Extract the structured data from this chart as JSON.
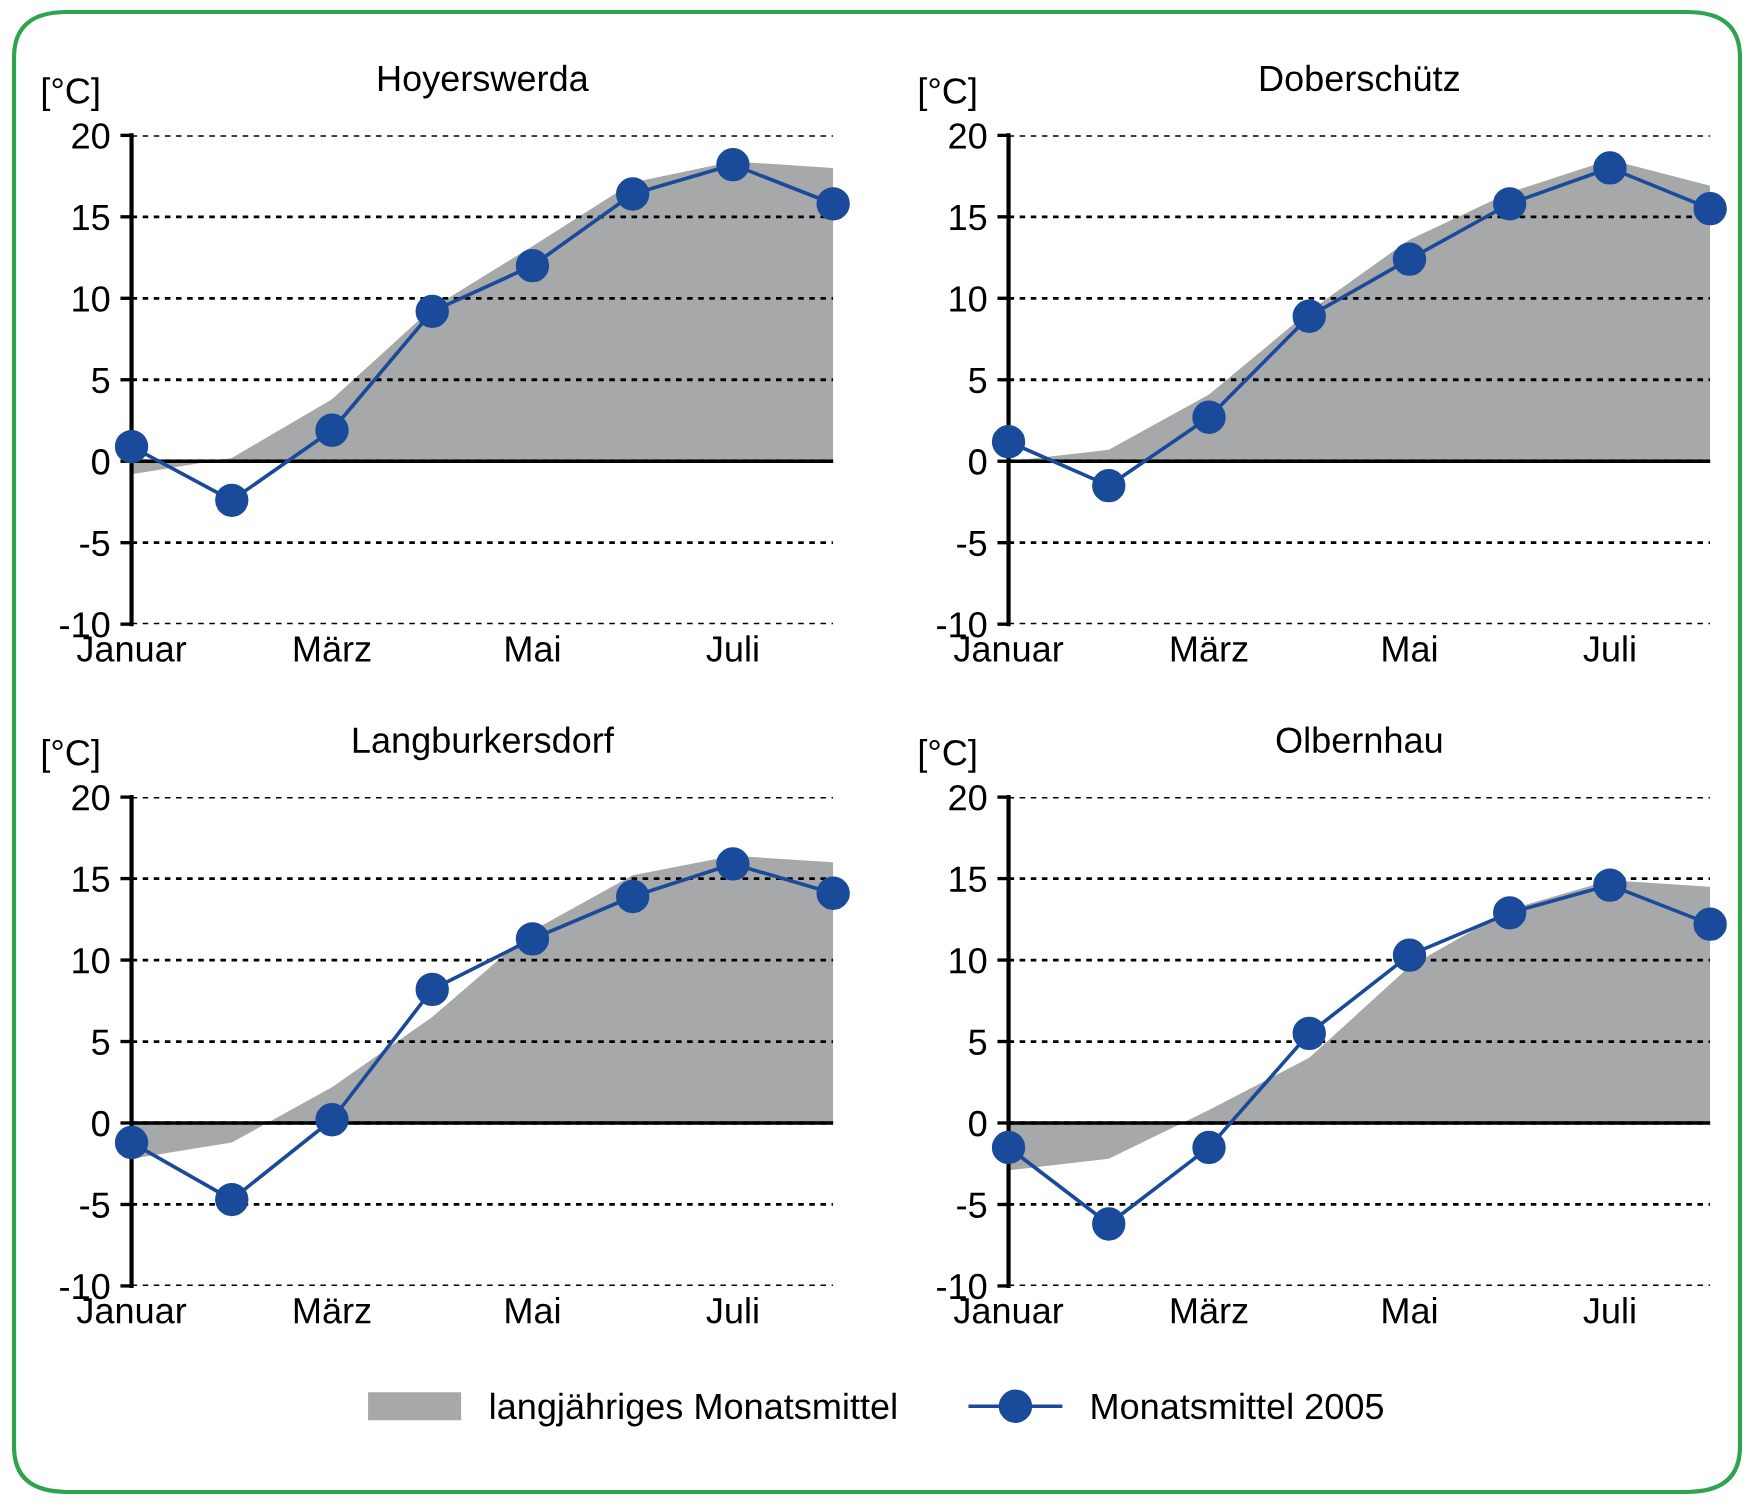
{
  "chart_data": [
    {
      "type": "line",
      "title": "Hoyerswerda",
      "ylabel": "[°C]",
      "categories": [
        "Januar",
        null,
        "März",
        null,
        "Mai",
        null,
        "Juli",
        null
      ],
      "ylim": [
        -10,
        20
      ],
      "yticks": [
        -10,
        -5,
        0,
        5,
        10,
        15,
        20
      ],
      "grid": "y",
      "legend": "bottom",
      "ref_lines": [
        {
          "axis": "y",
          "value": 0,
          "color": "#000000"
        }
      ],
      "series": [
        {
          "name": "langjähriges Monatsmittel",
          "type": "area",
          "color": "#a7a8aa",
          "values": [
            -0.8,
            0.2,
            3.8,
            9.4,
            13.2,
            17.1,
            18.4,
            18.0
          ]
        },
        {
          "name": "Monatsmittel 2005",
          "marker": "circle",
          "color": "#1a4b9a",
          "values": [
            0.9,
            -2.4,
            1.9,
            9.2,
            12.0,
            16.4,
            18.2,
            15.8
          ]
        }
      ]
    },
    {
      "type": "line",
      "title": "Doberschütz",
      "ylabel": "[°C]",
      "categories": [
        "Januar",
        null,
        "März",
        null,
        "Mai",
        null,
        "Juli",
        null
      ],
      "ylim": [
        -10,
        20
      ],
      "yticks": [
        -10,
        -5,
        0,
        5,
        10,
        15,
        20
      ],
      "grid": "y",
      "ref_lines": [
        {
          "axis": "y",
          "value": 0,
          "color": "#000000"
        }
      ],
      "series": [
        {
          "type": "area",
          "color": "#a7a8aa",
          "values": [
            0.0,
            0.7,
            4.1,
            9.2,
            13.6,
            16.5,
            18.5,
            16.9
          ]
        },
        {
          "marker": "circle",
          "color": "#1a4b9a",
          "values": [
            1.2,
            -1.5,
            2.7,
            8.9,
            12.4,
            15.8,
            18.0,
            15.5
          ]
        }
      ]
    },
    {
      "type": "line",
      "title": "Langburkersdorf",
      "ylabel": "[°C]",
      "categories": [
        "Januar",
        null,
        "März",
        null,
        "Mai",
        null,
        "Juli",
        null
      ],
      "ylim": [
        -10,
        20
      ],
      "yticks": [
        -10,
        -5,
        0,
        5,
        10,
        15,
        20
      ],
      "grid": "y",
      "ref_lines": [
        {
          "axis": "y",
          "value": 0,
          "color": "#000000"
        }
      ],
      "series": [
        {
          "type": "area",
          "color": "#a7a8aa",
          "values": [
            -2.2,
            -1.2,
            2.2,
            6.5,
            11.8,
            15.2,
            16.4,
            16.0
          ]
        },
        {
          "marker": "circle",
          "color": "#1a4b9a",
          "values": [
            -1.2,
            -4.7,
            0.2,
            8.2,
            11.3,
            13.9,
            15.9,
            14.1
          ]
        }
      ]
    },
    {
      "type": "line",
      "title": "Olbernhau",
      "ylabel": "[°C]",
      "categories": [
        "Januar",
        null,
        "März",
        null,
        "Mai",
        null,
        "Juli",
        null
      ],
      "ylim": [
        -10,
        20
      ],
      "yticks": [
        -10,
        -5,
        0,
        5,
        10,
        15,
        20
      ],
      "grid": "y",
      "ref_lines": [
        {
          "axis": "y",
          "value": 0,
          "color": "#000000"
        }
      ],
      "series": [
        {
          "type": "area",
          "color": "#a7a8aa",
          "values": [
            -2.9,
            -2.2,
            0.8,
            4.0,
            9.6,
            13.1,
            14.9,
            14.5
          ]
        },
        {
          "marker": "circle",
          "color": "#1a4b9a",
          "values": [
            -1.5,
            -6.2,
            -1.5,
            5.5,
            10.3,
            12.9,
            14.6,
            12.2
          ]
        }
      ]
    }
  ]
}
